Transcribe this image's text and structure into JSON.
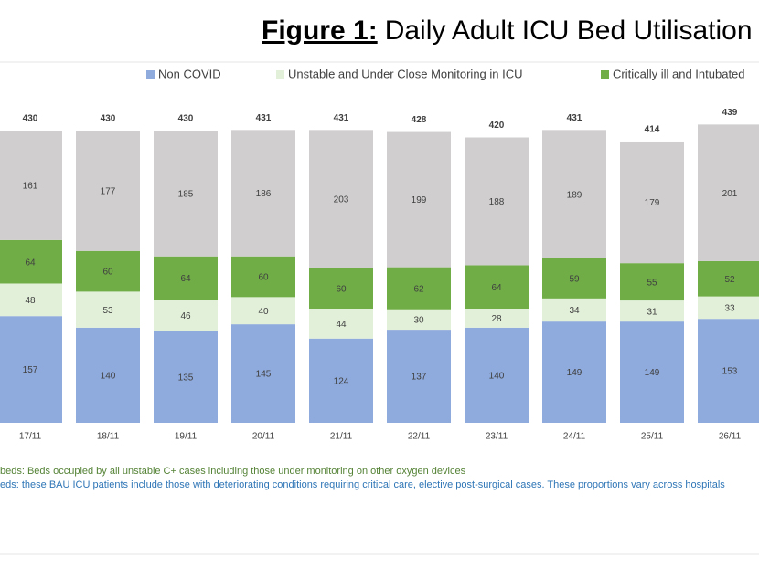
{
  "chart_data": {
    "type": "stacked_bar",
    "title_prefix": "Figure 1:",
    "title": "Daily Adult ICU Bed Utilisation",
    "categories": [
      "17/11",
      "18/11",
      "19/11",
      "20/11",
      "21/11",
      "22/11",
      "23/11",
      "24/11",
      "25/11",
      "26/11"
    ],
    "series": [
      {
        "name": "Non COVID",
        "color": "#8faadc",
        "values": [
          157,
          140,
          135,
          145,
          124,
          137,
          140,
          149,
          149,
          153
        ]
      },
      {
        "name": "Unstable and Under Close Monitoring in ICU",
        "color": "#e2f0d9",
        "values": [
          48,
          53,
          46,
          40,
          44,
          30,
          28,
          34,
          31,
          33
        ]
      },
      {
        "name": "Critically ill and Intubated",
        "color": "#70ad47",
        "values": [
          64,
          60,
          64,
          60,
          60,
          62,
          64,
          59,
          55,
          52
        ]
      },
      {
        "color": "#d0cece",
        "values": [
          161,
          177,
          185,
          186,
          203,
          199,
          188,
          189,
          179,
          201
        ]
      }
    ],
    "totals": [
      430,
      430,
      430,
      431,
      431,
      428,
      420,
      431,
      414,
      439
    ],
    "notes": [
      "beds: Beds occupied by all unstable C+ cases including those under monitoring on other oxygen devices",
      "eds: these BAU ICU patients include those with deteriorating conditions requiring critical care, elective post-surgical cases. These proportions vary across hospitals"
    ]
  }
}
